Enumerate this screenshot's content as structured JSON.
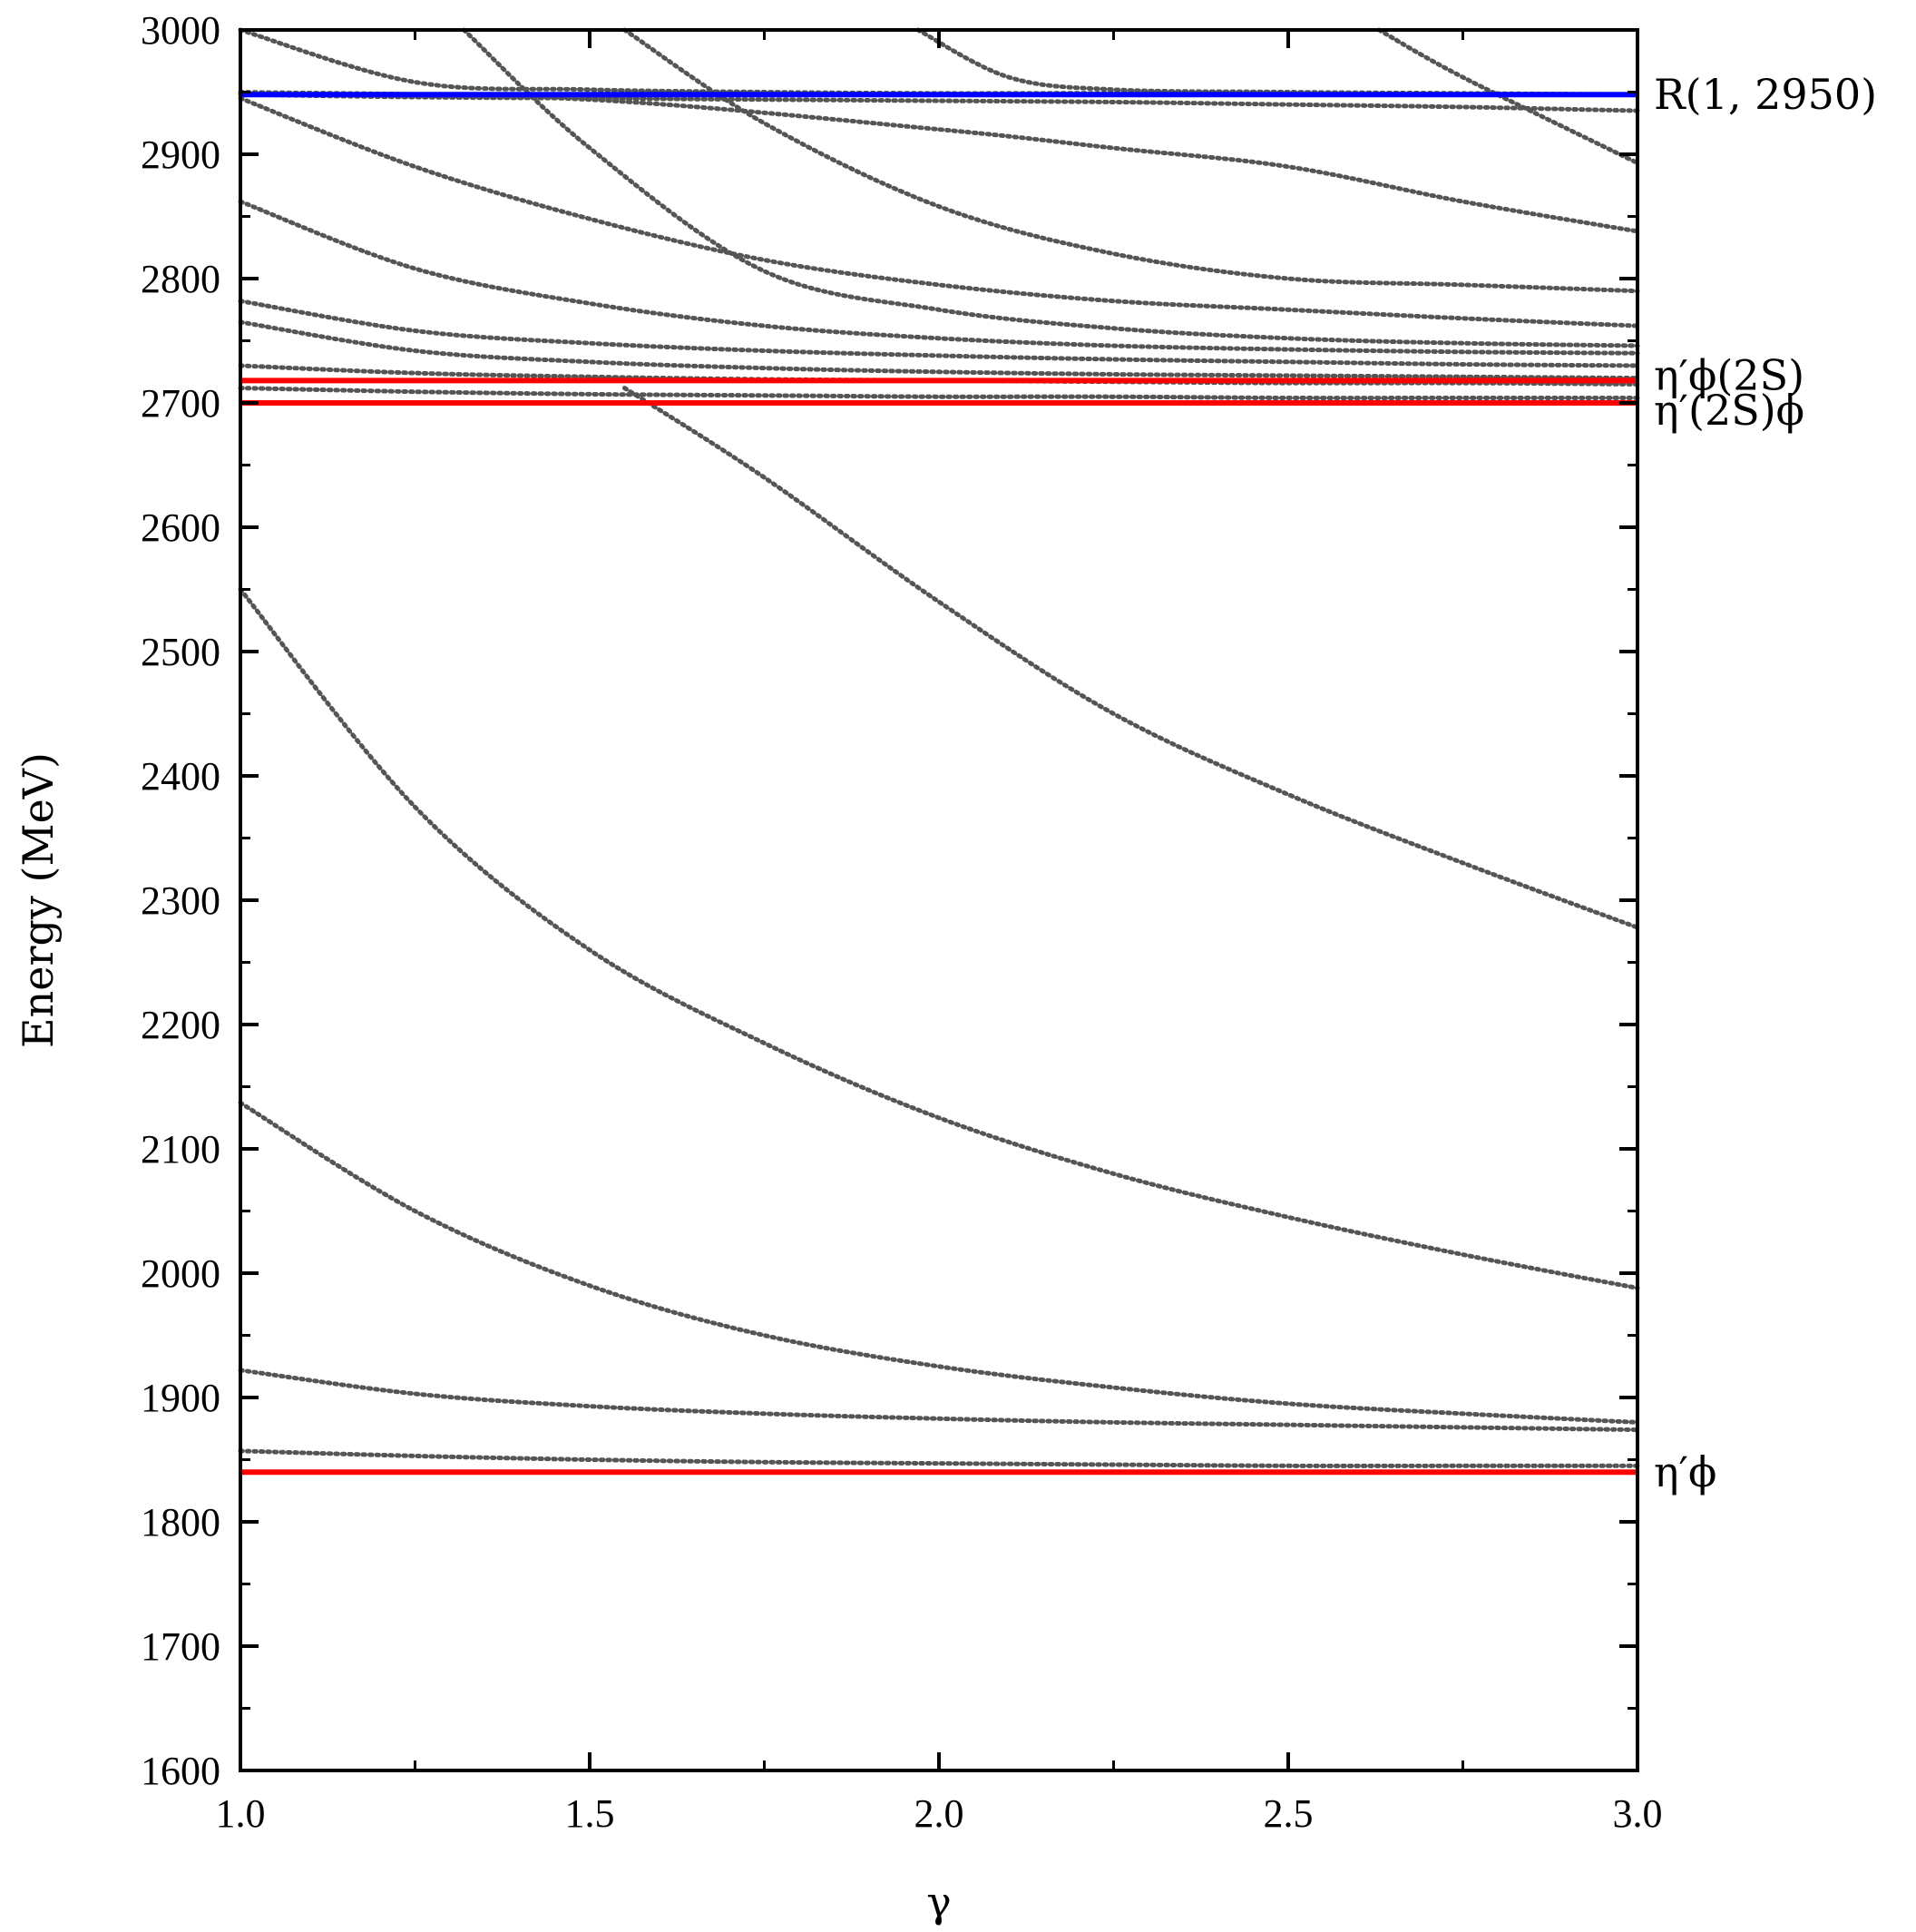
{
  "chart_data": {
    "type": "line",
    "title": "",
    "xlabel": "γ",
    "ylabel": "Energy (MeV)",
    "xlim": [
      1.0,
      3.0
    ],
    "ylim": [
      1600,
      3000
    ],
    "x_ticks": [
      "1.0",
      "1.5",
      "2.0",
      "2.5",
      "3.0"
    ],
    "y_ticks": [
      "1600",
      "1700",
      "1800",
      "1900",
      "2000",
      "2100",
      "2200",
      "2300",
      "2400",
      "2500",
      "2600",
      "2700",
      "2800",
      "2900",
      "3000"
    ],
    "grid": false,
    "reference_lines": [
      {
        "label": "R(1, 2950)",
        "y": 2948,
        "color": "#0000ff"
      },
      {
        "label": "η′ϕ(2S)",
        "y": 2718,
        "color": "#ff0000"
      },
      {
        "label": "η′(2S)ϕ",
        "y": 2700,
        "color": "#ff0000"
      },
      {
        "label": "η′ϕ",
        "y": 1840,
        "color": "#ff0000"
      }
    ],
    "series_style": {
      "color": "#555555",
      "dash": "dotted"
    },
    "series": [
      {
        "x": [
          1.0,
          1.25,
          1.5,
          1.75,
          2.0,
          2.25,
          2.5,
          2.75,
          3.0
        ],
        "values": [
          1857,
          1853,
          1850,
          1848,
          1847,
          1846,
          1845,
          1845,
          1845
        ]
      },
      {
        "x": [
          1.0,
          1.25,
          1.5,
          1.75,
          2.0,
          2.25,
          2.5,
          2.75,
          3.0
        ],
        "values": [
          1922,
          1903,
          1893,
          1887,
          1883,
          1880,
          1878,
          1876,
          1874
        ]
      },
      {
        "x": [
          1.0,
          1.25,
          1.5,
          1.75,
          2.0,
          2.25,
          2.5,
          2.75,
          3.0
        ],
        "values": [
          2137,
          2050,
          1990,
          1950,
          1925,
          1908,
          1895,
          1887,
          1880
        ]
      },
      {
        "x": [
          1.0,
          1.25,
          1.5,
          1.75,
          2.0,
          2.25,
          2.5,
          2.75,
          3.0
        ],
        "values": [
          2550,
          2375,
          2260,
          2185,
          2125,
          2080,
          2045,
          2015,
          1988
        ]
      },
      {
        "x": [
          1.55,
          1.75,
          2.0,
          2.25,
          2.5,
          2.75,
          3.0
        ],
        "values": [
          2712,
          2640,
          2540,
          2450,
          2385,
          2330,
          2278
        ]
      },
      {
        "x": [
          1.0,
          1.25,
          1.5,
          1.75,
          2.0,
          2.25,
          2.5,
          2.75,
          3.0
        ],
        "values": [
          2730,
          2724,
          2721,
          2719,
          2718,
          2717,
          2716,
          2716,
          2715
        ]
      },
      {
        "x": [
          1.0,
          1.25,
          1.5,
          1.75,
          2.0,
          2.25,
          2.5,
          2.75,
          3.0
        ],
        "values": [
          2712,
          2709,
          2707,
          2706,
          2705,
          2705,
          2704,
          2704,
          2704
        ]
      },
      {
        "x": [
          1.0,
          1.25,
          1.5,
          1.75,
          2.0,
          2.25,
          2.5,
          2.75,
          3.0
        ],
        "values": [
          2765,
          2742,
          2733,
          2728,
          2725,
          2723,
          2722,
          2721,
          2720
        ]
      },
      {
        "x": [
          1.0,
          1.25,
          1.5,
          1.75,
          2.0,
          2.25,
          2.5,
          2.75,
          3.0
        ],
        "values": [
          2782,
          2758,
          2748,
          2742,
          2738,
          2735,
          2733,
          2731,
          2730
        ]
      },
      {
        "x": [
          1.0,
          1.25,
          1.5,
          1.75,
          2.0,
          2.25,
          2.5,
          2.75,
          3.0
        ],
        "values": [
          2862,
          2808,
          2780,
          2762,
          2752,
          2746,
          2743,
          2741,
          2740
        ]
      },
      {
        "x": [
          1.0,
          1.25,
          1.5,
          1.75,
          2.0,
          2.25,
          2.5,
          2.75,
          3.0
        ],
        "values": [
          2945,
          2890,
          2848,
          2815,
          2795,
          2782,
          2775,
          2768,
          2762
        ]
      },
      {
        "x": [
          1.0,
          1.25,
          1.5,
          1.75,
          2.0,
          2.25,
          2.5,
          2.75,
          3.0
        ],
        "values": [
          3000,
          2958,
          2952,
          2950,
          2949,
          2949,
          2948,
          2948,
          2948
        ]
      },
      {
        "x": [
          1.32,
          1.5,
          1.75,
          2.0,
          2.25,
          2.5,
          2.75,
          3.0
        ],
        "values": [
          3000,
          2905,
          2806,
          2775,
          2760,
          2752,
          2748,
          2746
        ]
      },
      {
        "x": [
          1.55,
          1.75,
          2.0,
          2.25,
          2.5,
          2.75,
          3.0
        ],
        "values": [
          3000,
          2925,
          2858,
          2820,
          2800,
          2795,
          2790
        ]
      },
      {
        "x": [
          1.97,
          2.1,
          2.25,
          2.5,
          2.75,
          3.0
        ],
        "values": [
          3000,
          2962,
          2952,
          2950,
          2949,
          2948
        ]
      },
      {
        "x": [
          2.63,
          2.75,
          3.0
        ],
        "values": [
          3000,
          2962,
          2893
        ]
      },
      {
        "x": [
          1.0,
          1.25,
          1.5,
          1.75,
          2.0,
          2.25,
          2.5,
          2.75,
          3.0
        ],
        "values": [
          2948,
          2946,
          2945,
          2944,
          2943,
          2942,
          2940,
          2938,
          2935
        ]
      },
      {
        "x": [
          1.0,
          1.5,
          2.0,
          2.25,
          2.5,
          2.75,
          3.0
        ],
        "values": [
          2950,
          2944,
          2920,
          2905,
          2890,
          2862,
          2838
        ]
      }
    ]
  }
}
